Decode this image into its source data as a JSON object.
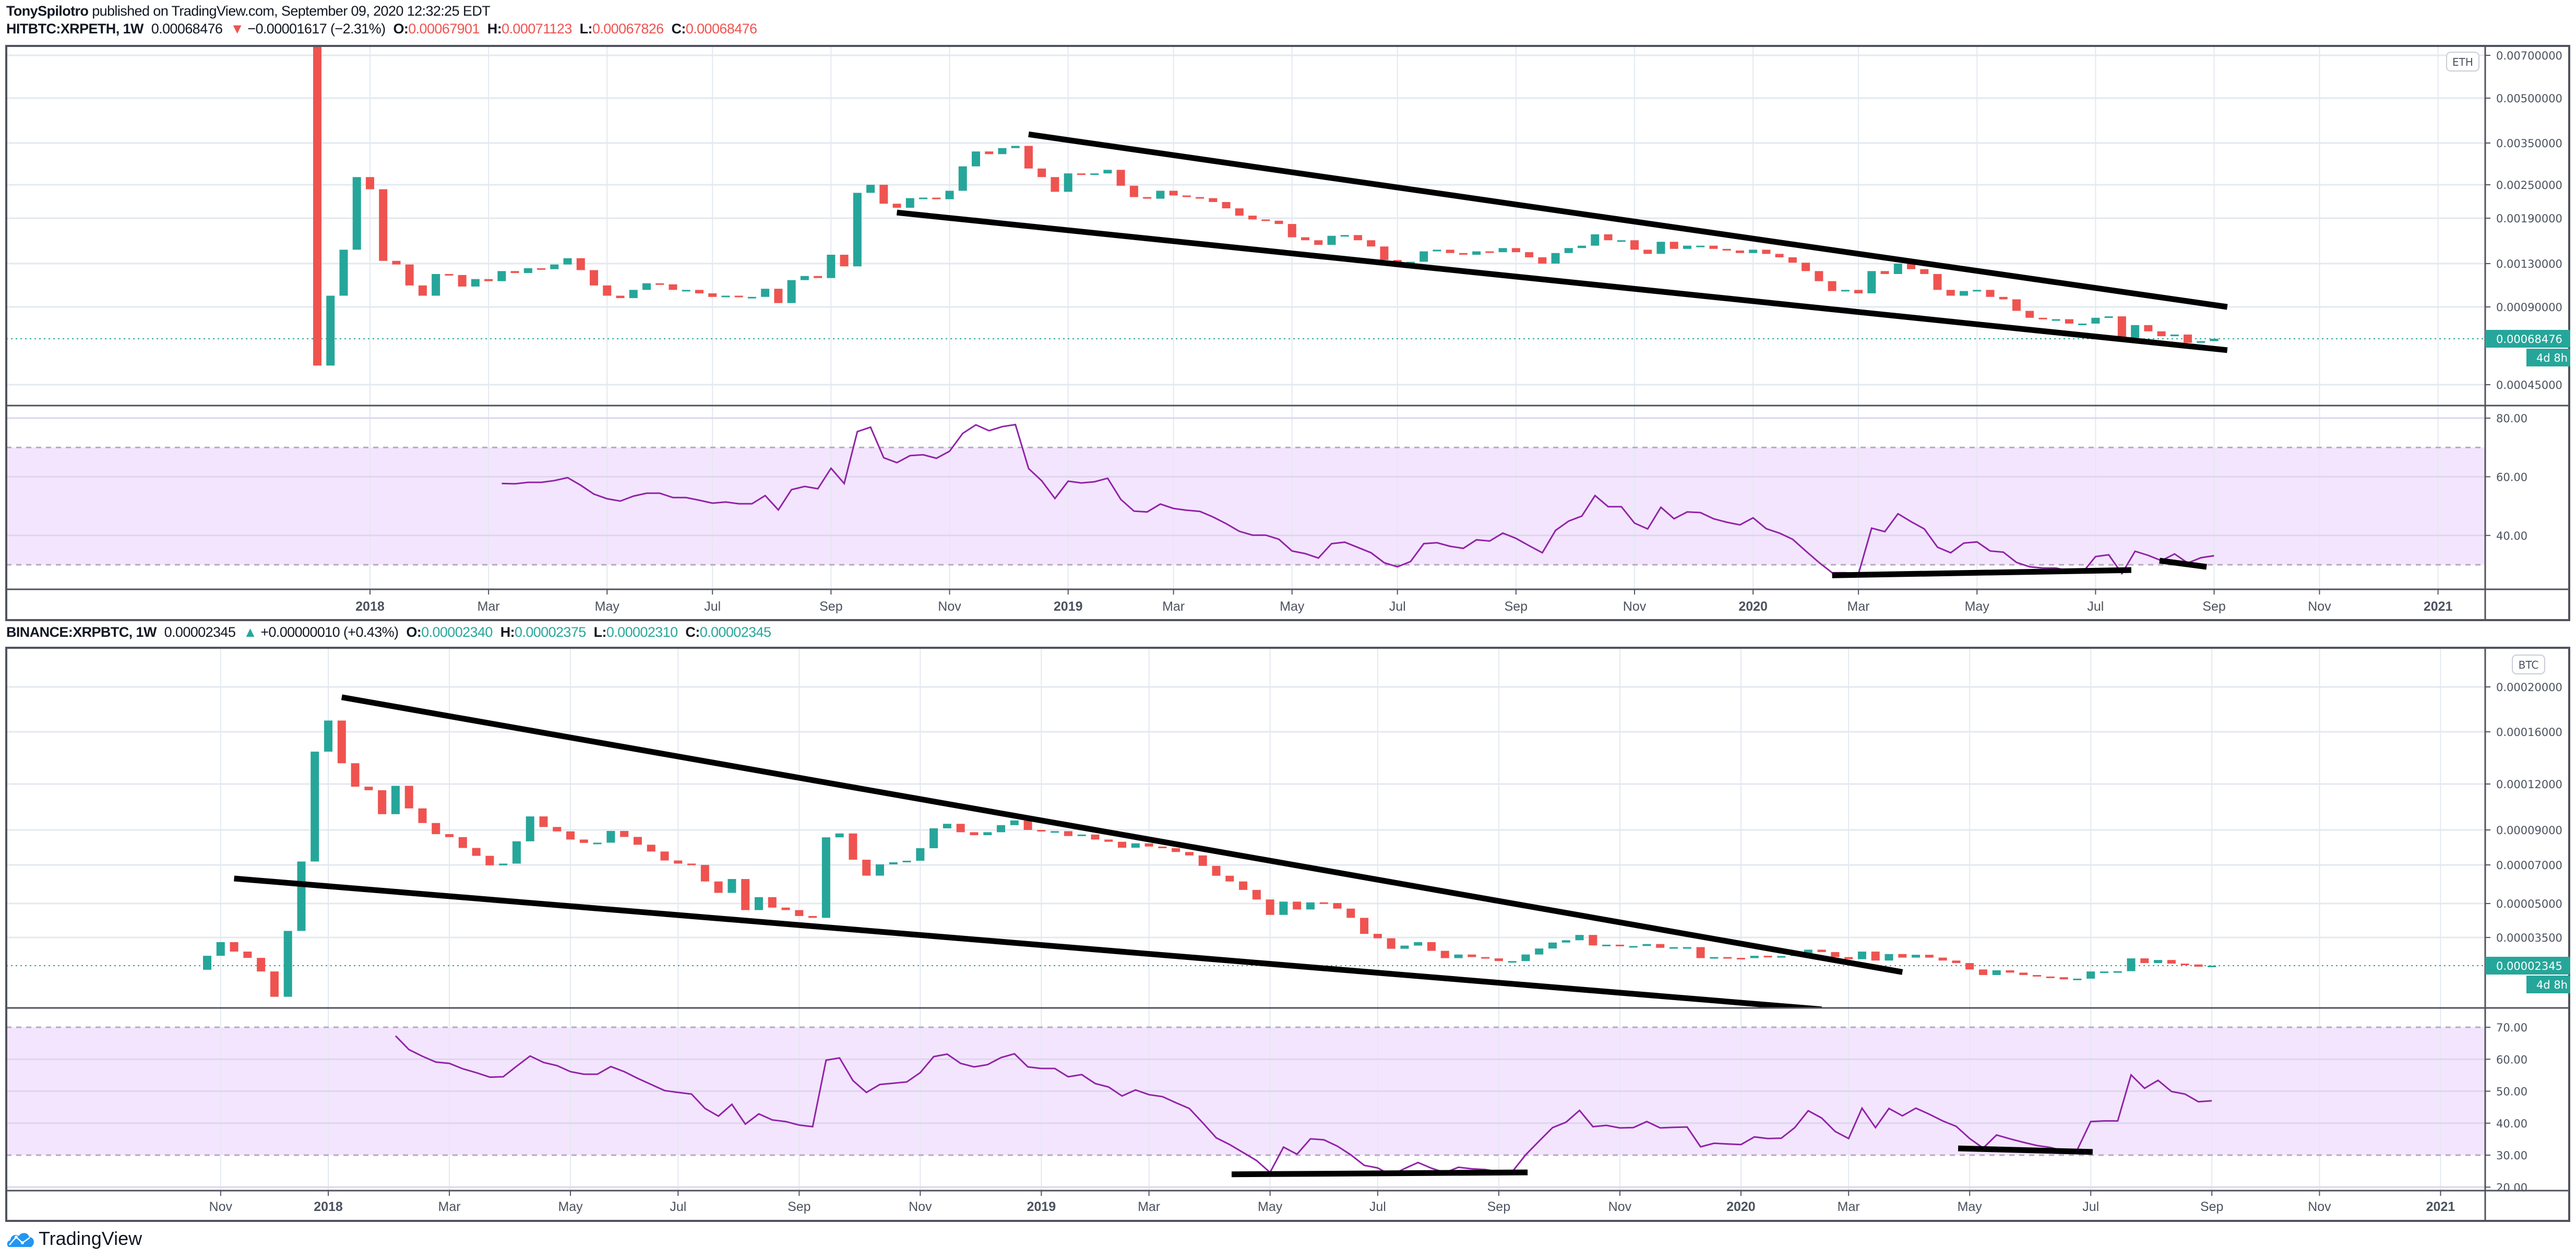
{
  "publish_line": {
    "author": "TonySpilotro",
    "text": "published on TradingView.com, September 09, 2020 12:32:25 EDT"
  },
  "colors": {
    "up": "#26a69a",
    "down": "#ef5350",
    "rsi_line": "#9123a8",
    "trendline": "#000000",
    "rsi_band": "#f3e5fd",
    "price_label": "#26a69a"
  },
  "footer": {
    "brand": "TradingView",
    "logo_icon": "tradingview-cloud-icon"
  },
  "charts": [
    {
      "legend": {
        "symbol": "HITBTC:XRPETH, 1W",
        "last": "0.00068476",
        "arrow": "▼",
        "change": "−0.00001617 (−2.31%)",
        "ohlc": [
          {
            "label": "O:",
            "value": "0.00067901"
          },
          {
            "label": "H:",
            "value": "0.00071123"
          },
          {
            "label": "L:",
            "value": "0.00067826"
          },
          {
            "label": "C:",
            "value": "0.00068476"
          }
        ],
        "direction": "down"
      },
      "currency_badge": "ETH",
      "current_price_label": "0.00068476",
      "countdown": "4d 8h"
    },
    {
      "legend": {
        "symbol": "BINANCE:XRPBTC, 1W",
        "last": "0.00002345",
        "arrow": "▲",
        "change": "+0.00000010 (+0.43%)",
        "ohlc": [
          {
            "label": "O:",
            "value": "0.00002340"
          },
          {
            "label": "H:",
            "value": "0.00002375"
          },
          {
            "label": "L:",
            "value": "0.00002310"
          },
          {
            "label": "C:",
            "value": "0.00002345"
          }
        ],
        "direction": "up"
      },
      "currency_badge": "BTC",
      "current_price_label": "0.00002345",
      "countdown": "4d 8h"
    }
  ],
  "chart_data": [
    {
      "type": "candlestick",
      "symbol": "HITBTC:XRPETH",
      "interval": "1W",
      "first_bar_date": "2017-12-04",
      "y_scale": "log",
      "first_open": 0.0075,
      "closes": [
        0.000536,
        0.00099,
        0.00146,
        0.00266,
        0.00241,
        0.00133,
        0.00129,
        0.00108,
        0.00099,
        0.00119,
        0.00118,
        0.00107,
        0.00114,
        0.00112,
        0.00122,
        0.0012,
        0.00125,
        0.00124,
        0.00129,
        0.00136,
        0.00123,
        0.00108,
        0.00099,
        0.00097,
        0.00104,
        0.0011,
        0.00109,
        0.00104,
        0.00104,
        0.00101,
        0.00098,
        0.00099,
        0.00098,
        0.00098,
        0.00105,
        0.00093,
        0.00113,
        0.00117,
        0.00115,
        0.0014,
        0.00127,
        0.00234,
        0.0025,
        0.00214,
        0.00207,
        0.00224,
        0.00225,
        0.00222,
        0.00238,
        0.0029,
        0.00327,
        0.0032,
        0.00336,
        0.00342,
        0.00285,
        0.00266,
        0.00236,
        0.00274,
        0.00271,
        0.00274,
        0.00282,
        0.00248,
        0.00226,
        0.00223,
        0.00238,
        0.00229,
        0.00226,
        0.00224,
        0.00217,
        0.00206,
        0.00194,
        0.00188,
        0.00186,
        0.00181,
        0.00162,
        0.00158,
        0.00152,
        0.00164,
        0.00165,
        0.00158,
        0.0015,
        0.00134,
        0.00129,
        0.00132,
        0.00144,
        0.00146,
        0.00142,
        0.0014,
        0.00144,
        0.00143,
        0.00148,
        0.00143,
        0.00137,
        0.0013,
        0.00142,
        0.00148,
        0.00151,
        0.00166,
        0.00158,
        0.00158,
        0.00146,
        0.00141,
        0.00156,
        0.00147,
        0.00151,
        0.00151,
        0.00147,
        0.00145,
        0.00142,
        0.00146,
        0.00141,
        0.00137,
        0.00131,
        0.00122,
        0.00112,
        0.00103,
        0.00104,
        0.00101,
        0.00122,
        0.00119,
        0.0013,
        0.00124,
        0.00119,
        0.00104,
        0.00099,
        0.00103,
        0.00104,
        0.00098,
        0.00096,
        0.00087,
        0.00082,
        0.00081,
        0.00081,
        0.00078,
        0.00078,
        0.00082,
        0.00083,
        0.00069,
        0.00077,
        0.00073,
        0.0007,
        0.00071,
        0.00066,
        0.00067,
        0.00068476
      ],
      "current_price": 0.00068476,
      "y_ticks": [
        {
          "label": "0.00700000",
          "value": 0.007
        },
        {
          "label": "0.00500000",
          "value": 0.005
        },
        {
          "label": "0.00350000",
          "value": 0.0035
        },
        {
          "label": "0.00250000",
          "value": 0.0025
        },
        {
          "label": "0.00190000",
          "value": 0.0019
        },
        {
          "label": "0.00130000",
          "value": 0.0013
        },
        {
          "label": "0.00090000",
          "value": 0.0009
        },
        {
          "label": "0.00045000",
          "value": 0.00045
        }
      ],
      "x_ticks": [
        {
          "label": "2018",
          "date": "2018-01-01"
        },
        {
          "label": "Mar",
          "date": "2018-03-01"
        },
        {
          "label": "May",
          "date": "2018-05-01"
        },
        {
          "label": "Jul",
          "date": "2018-07-01"
        },
        {
          "label": "Sep",
          "date": "2018-09-01"
        },
        {
          "label": "Nov",
          "date": "2018-11-01"
        },
        {
          "label": "2019",
          "date": "2019-01-01"
        },
        {
          "label": "Mar",
          "date": "2019-03-01"
        },
        {
          "label": "May",
          "date": "2019-05-01"
        },
        {
          "label": "Jul",
          "date": "2019-07-01"
        },
        {
          "label": "Sep",
          "date": "2019-09-01"
        },
        {
          "label": "Nov",
          "date": "2019-11-01"
        },
        {
          "label": "2020",
          "date": "2020-01-01"
        },
        {
          "label": "Mar",
          "date": "2020-03-01"
        },
        {
          "label": "May",
          "date": "2020-05-01"
        },
        {
          "label": "Jul",
          "date": "2020-07-01"
        },
        {
          "label": "Sep",
          "date": "2020-09-01"
        },
        {
          "label": "Nov",
          "date": "2020-11-01"
        },
        {
          "label": "2021",
          "date": "2021-01-01"
        }
      ],
      "trendlines": [
        {
          "from": {
            "date": "2018-12-17",
            "price": 0.00375
          },
          "to": {
            "date": "2020-09-14",
            "price": 0.0009
          }
        },
        {
          "from": {
            "date": "2018-10-08",
            "price": 0.00199
          },
          "to": {
            "date": "2020-09-14",
            "price": 0.000617
          }
        }
      ],
      "rsi": {
        "type": "line",
        "first_bar_index": 14,
        "ylim": [
          20,
          85
        ],
        "y_ticks": [
          {
            "label": "80.00",
            "value": 80
          },
          {
            "label": "60.00",
            "value": 60
          },
          {
            "label": "40.00",
            "value": 40
          }
        ],
        "band": [
          30,
          70
        ],
        "values": [
          57.7,
          57.6,
          58.1,
          58.1,
          58.7,
          59.7,
          57.1,
          54.1,
          52.5,
          51.7,
          53.4,
          54.4,
          54.4,
          52.9,
          52.9,
          52.0,
          51.0,
          51.4,
          50.8,
          50.8,
          53.6,
          48.7,
          55.6,
          56.7,
          55.9,
          62.9,
          57.7,
          75.4,
          76.9,
          66.5,
          64.8,
          67.2,
          67.5,
          66.3,
          68.7,
          74.8,
          77.7,
          75.7,
          77.1,
          77.8,
          62.8,
          58.6,
          52.6,
          58.5,
          57.9,
          58.3,
          59.5,
          52.3,
          48.3,
          48.0,
          50.7,
          49.2,
          48.6,
          48.2,
          46.3,
          44.0,
          41.4,
          40.1,
          40.1,
          38.7,
          34.7,
          33.8,
          32.3,
          37.2,
          37.7,
          35.9,
          34.1,
          30.7,
          29.3,
          31.1,
          37.2,
          37.5,
          36.3,
          35.6,
          38.5,
          38.1,
          40.8,
          39.0,
          36.5,
          34.1,
          41.7,
          44.9,
          46.6,
          53.6,
          49.8,
          49.8,
          44.2,
          42.2,
          49.6,
          45.7,
          48.0,
          47.8,
          45.7,
          44.5,
          43.6,
          46.0,
          42.3,
          40.8,
          38.7,
          34.7,
          30.8,
          27.3,
          27.3,
          26.9,
          42.5,
          41.3,
          47.4,
          44.7,
          42.2,
          36.0,
          34.1,
          37.4,
          37.8,
          34.7,
          34.3,
          30.8,
          29.3,
          28.9,
          28.9,
          27.9,
          27.3,
          32.8,
          33.4,
          27.0,
          34.6,
          33.2,
          31.4,
          33.7,
          30.6,
          32.4,
          33.1
        ],
        "trendlines": [
          {
            "from": {
              "date": "2020-02-17",
              "value": 26.4
            },
            "to": {
              "date": "2020-07-25",
              "value": 28.2
            }
          },
          {
            "from": {
              "date": "2020-08-09",
              "value": 31.4
            },
            "to": {
              "date": "2020-09-03",
              "value": 29.3
            }
          }
        ]
      }
    },
    {
      "type": "candlestick",
      "symbol": "BINANCE:XRPBTC",
      "interval": "1W",
      "first_bar_date": "2017-10-30",
      "y_scale": "log",
      "first_open": 2.212e-05,
      "closes": [
        2.698e-05,
        3.276e-05,
        2.864e-05,
        2.619e-05,
        2.159e-05,
        1.507e-05,
        3.75e-05,
        7.173e-05,
        0.00014345,
        0.00016922,
        0.00013455,
        0.00011801,
        0.00011541,
        9.934e-05,
        0.00011862,
        0.00010301,
        9.4e-05,
        8.734e-05,
        8.548e-05,
        7.907e-05,
        7.472e-05,
        6.976e-05,
        7.067e-05,
        8.293e-05,
        9.796e-05,
        9.168e-05,
        8.907e-05,
        8.4e-05,
        8.2e-05,
        8.213e-05,
        8.933e-05,
        8.56e-05,
        8.093e-05,
        7.707e-05,
        7.226e-05,
        7.067e-05,
        7e-05,
        6.06e-05,
        5.488e-05,
        6.19e-05,
        4.667e-05,
        5.286e-05,
        4.792e-05,
        4.667e-05,
        4.386e-05,
        4.302e-05,
        8.534e-05,
        8.774e-05,
        7.266e-05,
        6.375e-05,
        7.027e-05,
        7.133e-05,
        7.213e-05,
        7.893e-05,
        9.092e-05,
        9.352e-05,
        8.854e-05,
        8.667e-05,
        8.854e-05,
        9.275e-05,
        9.551e-05,
        9e-05,
        8.907e-05,
        8.92e-05,
        8.614e-05,
        8.707e-05,
        8.4e-05,
        8.267e-05,
        7.92e-05,
        8.173e-05,
        7.987e-05,
        7.893e-05,
        7.68e-05,
        7.493e-05,
        6.94e-05,
        6.369e-05,
        6.06e-05,
        5.631e-05,
        5.179e-05,
        4.438e-05,
        5.083e-05,
        4.698e-05,
        5.052e-05,
        5.021e-05,
        4.74e-05,
        4.302e-05,
        3.635e-05,
        3.458e-05,
        2.981e-05,
        3.118e-05,
        3.276e-05,
        2.894e-05,
        2.61e-05,
        2.747e-05,
        2.649e-05,
        2.6e-05,
        2.502e-05,
        2.502e-05,
        2.747e-05,
        2.992e-05,
        3.256e-05,
        3.364e-05,
        3.594e-05,
        3.128e-05,
        3.158e-05,
        3.1e-05,
        3.1e-05,
        3.188e-05,
        3.021e-05,
        3.051e-05,
        3.051e-05,
        2.61e-05,
        2.649e-05,
        2.619e-05,
        2.61e-05,
        2.698e-05,
        2.668e-05,
        2.688e-05,
        2.796e-05,
        2.943e-05,
        2.845e-05,
        2.649e-05,
        2.57e-05,
        2.864e-05,
        2.521e-05,
        2.766e-05,
        2.629e-05,
        2.737e-05,
        2.629e-05,
        2.521e-05,
        2.433e-05,
        2.221e-05,
        2.053e-05,
        2.195e-05,
        2.124e-05,
        2.053e-05,
        2.009e-05,
        1.99e-05,
        1.93e-05,
        1.95e-05,
        2.159e-05,
        2.159e-05,
        2.168e-05,
        2.6e-05,
        2.433e-05,
        2.541e-05,
        2.414e-05,
        2.384e-05,
        2.31e-05,
        2.345e-05
      ],
      "current_price": 2.345e-05,
      "y_ticks": [
        {
          "label": "0.00020000",
          "value": 0.0002
        },
        {
          "label": "0.00016000",
          "value": 0.00016
        },
        {
          "label": "0.00012000",
          "value": 0.00012
        },
        {
          "label": "0.00009000",
          "value": 9e-05
        },
        {
          "label": "0.00007000",
          "value": 7e-05
        },
        {
          "label": "0.00005000",
          "value": 5e-05
        },
        {
          "label": "0.00003500",
          "value": 3.5e-05
        }
      ],
      "x_ticks": [
        {
          "label": "Nov",
          "date": "2017-11-01"
        },
        {
          "label": "2018",
          "date": "2018-01-01"
        },
        {
          "label": "Mar",
          "date": "2018-03-01"
        },
        {
          "label": "May",
          "date": "2018-05-01"
        },
        {
          "label": "Jul",
          "date": "2018-07-01"
        },
        {
          "label": "Sep",
          "date": "2018-09-01"
        },
        {
          "label": "Nov",
          "date": "2018-11-01"
        },
        {
          "label": "2019",
          "date": "2019-01-01"
        },
        {
          "label": "Mar",
          "date": "2019-03-01"
        },
        {
          "label": "May",
          "date": "2019-05-01"
        },
        {
          "label": "Jul",
          "date": "2019-07-01"
        },
        {
          "label": "Sep",
          "date": "2019-09-01"
        },
        {
          "label": "Nov",
          "date": "2019-11-01"
        },
        {
          "label": "2020",
          "date": "2020-01-01"
        },
        {
          "label": "Mar",
          "date": "2020-03-01"
        },
        {
          "label": "May",
          "date": "2020-05-01"
        },
        {
          "label": "Jul",
          "date": "2020-07-01"
        },
        {
          "label": "Sep",
          "date": "2020-09-01"
        },
        {
          "label": "Nov",
          "date": "2020-11-01"
        },
        {
          "label": "2021",
          "date": "2021-01-01"
        }
      ],
      "trendlines": [
        {
          "from": {
            "date": "2018-01-08",
            "price": 0.00019
          },
          "to": {
            "date": "2020-03-30",
            "price": 2.14e-05
          }
        },
        {
          "from": {
            "date": "2017-11-13",
            "price": 6.22e-05
          },
          "to": {
            "date": "2020-02-17",
            "price": 1.26e-05
          }
        }
      ],
      "rsi": {
        "type": "line",
        "first_bar_index": 14,
        "ylim": [
          20,
          70
        ],
        "y_ticks": [
          {
            "label": "70.00",
            "value": 70
          },
          {
            "label": "60.00",
            "value": 60
          },
          {
            "label": "50.00",
            "value": 50
          },
          {
            "label": "40.00",
            "value": 40
          },
          {
            "label": "30.00",
            "value": 30
          },
          {
            "label": "20.00",
            "value": 20
          }
        ],
        "band": [
          30,
          70
        ],
        "values": [
          67.3,
          63.0,
          60.9,
          59.1,
          58.7,
          57.0,
          55.8,
          54.4,
          54.5,
          57.8,
          61.0,
          59.0,
          58.0,
          56.1,
          55.3,
          55.3,
          57.7,
          56.1,
          54.0,
          52.1,
          50.2,
          49.6,
          49.1,
          44.6,
          42.2,
          45.9,
          39.7,
          42.9,
          41.0,
          40.5,
          39.4,
          38.9,
          59.7,
          60.4,
          53.3,
          49.6,
          52.1,
          52.5,
          52.9,
          55.8,
          60.8,
          61.6,
          58.7,
          57.6,
          58.3,
          60.5,
          61.7,
          57.6,
          57.1,
          57.1,
          54.5,
          55.2,
          52.4,
          51.3,
          48.5,
          50.4,
          48.9,
          48.3,
          46.4,
          44.6,
          40.1,
          35.4,
          33.3,
          30.8,
          28.3,
          24.6,
          32.5,
          30.3,
          35.1,
          34.8,
          32.8,
          30.1,
          26.8,
          26.0,
          23.7,
          25.8,
          27.7,
          25.9,
          24.5,
          26.2,
          25.7,
          25.5,
          24.8,
          24.8,
          30.1,
          34.4,
          38.6,
          40.3,
          44.0,
          38.9,
          39.3,
          38.5,
          38.6,
          40.5,
          38.5,
          38.7,
          38.8,
          32.6,
          33.7,
          33.5,
          33.3,
          35.7,
          35.2,
          35.3,
          38.6,
          43.9,
          41.6,
          37.4,
          35.2,
          44.7,
          38.6,
          44.6,
          42.3,
          44.7,
          42.8,
          40.7,
          39.0,
          35.2,
          32.2,
          36.3,
          35.1,
          34.0,
          33.0,
          32.4,
          31.3,
          31.7,
          40.5,
          40.7,
          40.7,
          55.1,
          50.9,
          53.4,
          49.9,
          49.1,
          46.7,
          47.0
        ],
        "trendlines": [
          {
            "from": {
              "date": "2019-04-16",
              "value": 24.0
            },
            "to": {
              "date": "2019-09-17",
              "value": 24.6
            }
          },
          {
            "from": {
              "date": "2020-04-28",
              "value": 32.1
            },
            "to": {
              "date": "2020-07-07",
              "value": 31.0
            }
          }
        ]
      }
    }
  ]
}
